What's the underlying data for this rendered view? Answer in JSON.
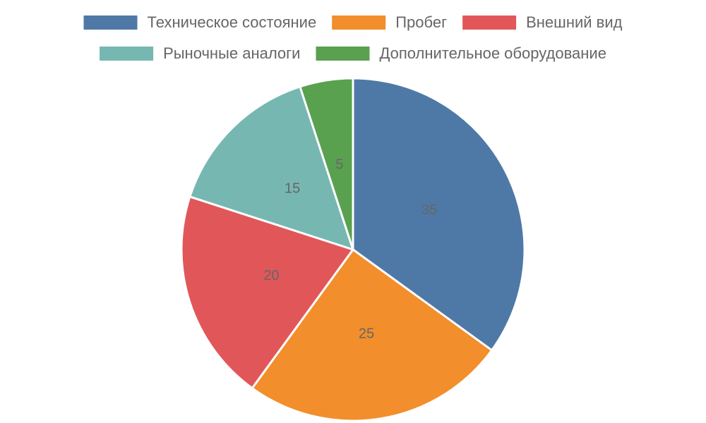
{
  "chart_data": {
    "type": "pie",
    "categories": [
      "Техническое состояние",
      "Пробег",
      "Внешний вид",
      "Рыночные аналоги",
      "Дополнительное оборудование"
    ],
    "values": [
      35,
      25,
      20,
      15,
      5
    ],
    "colors": [
      "#4e79a7",
      "#f28e2b",
      "#e15759",
      "#76b7b2",
      "#59a14f"
    ],
    "legend": "top"
  }
}
